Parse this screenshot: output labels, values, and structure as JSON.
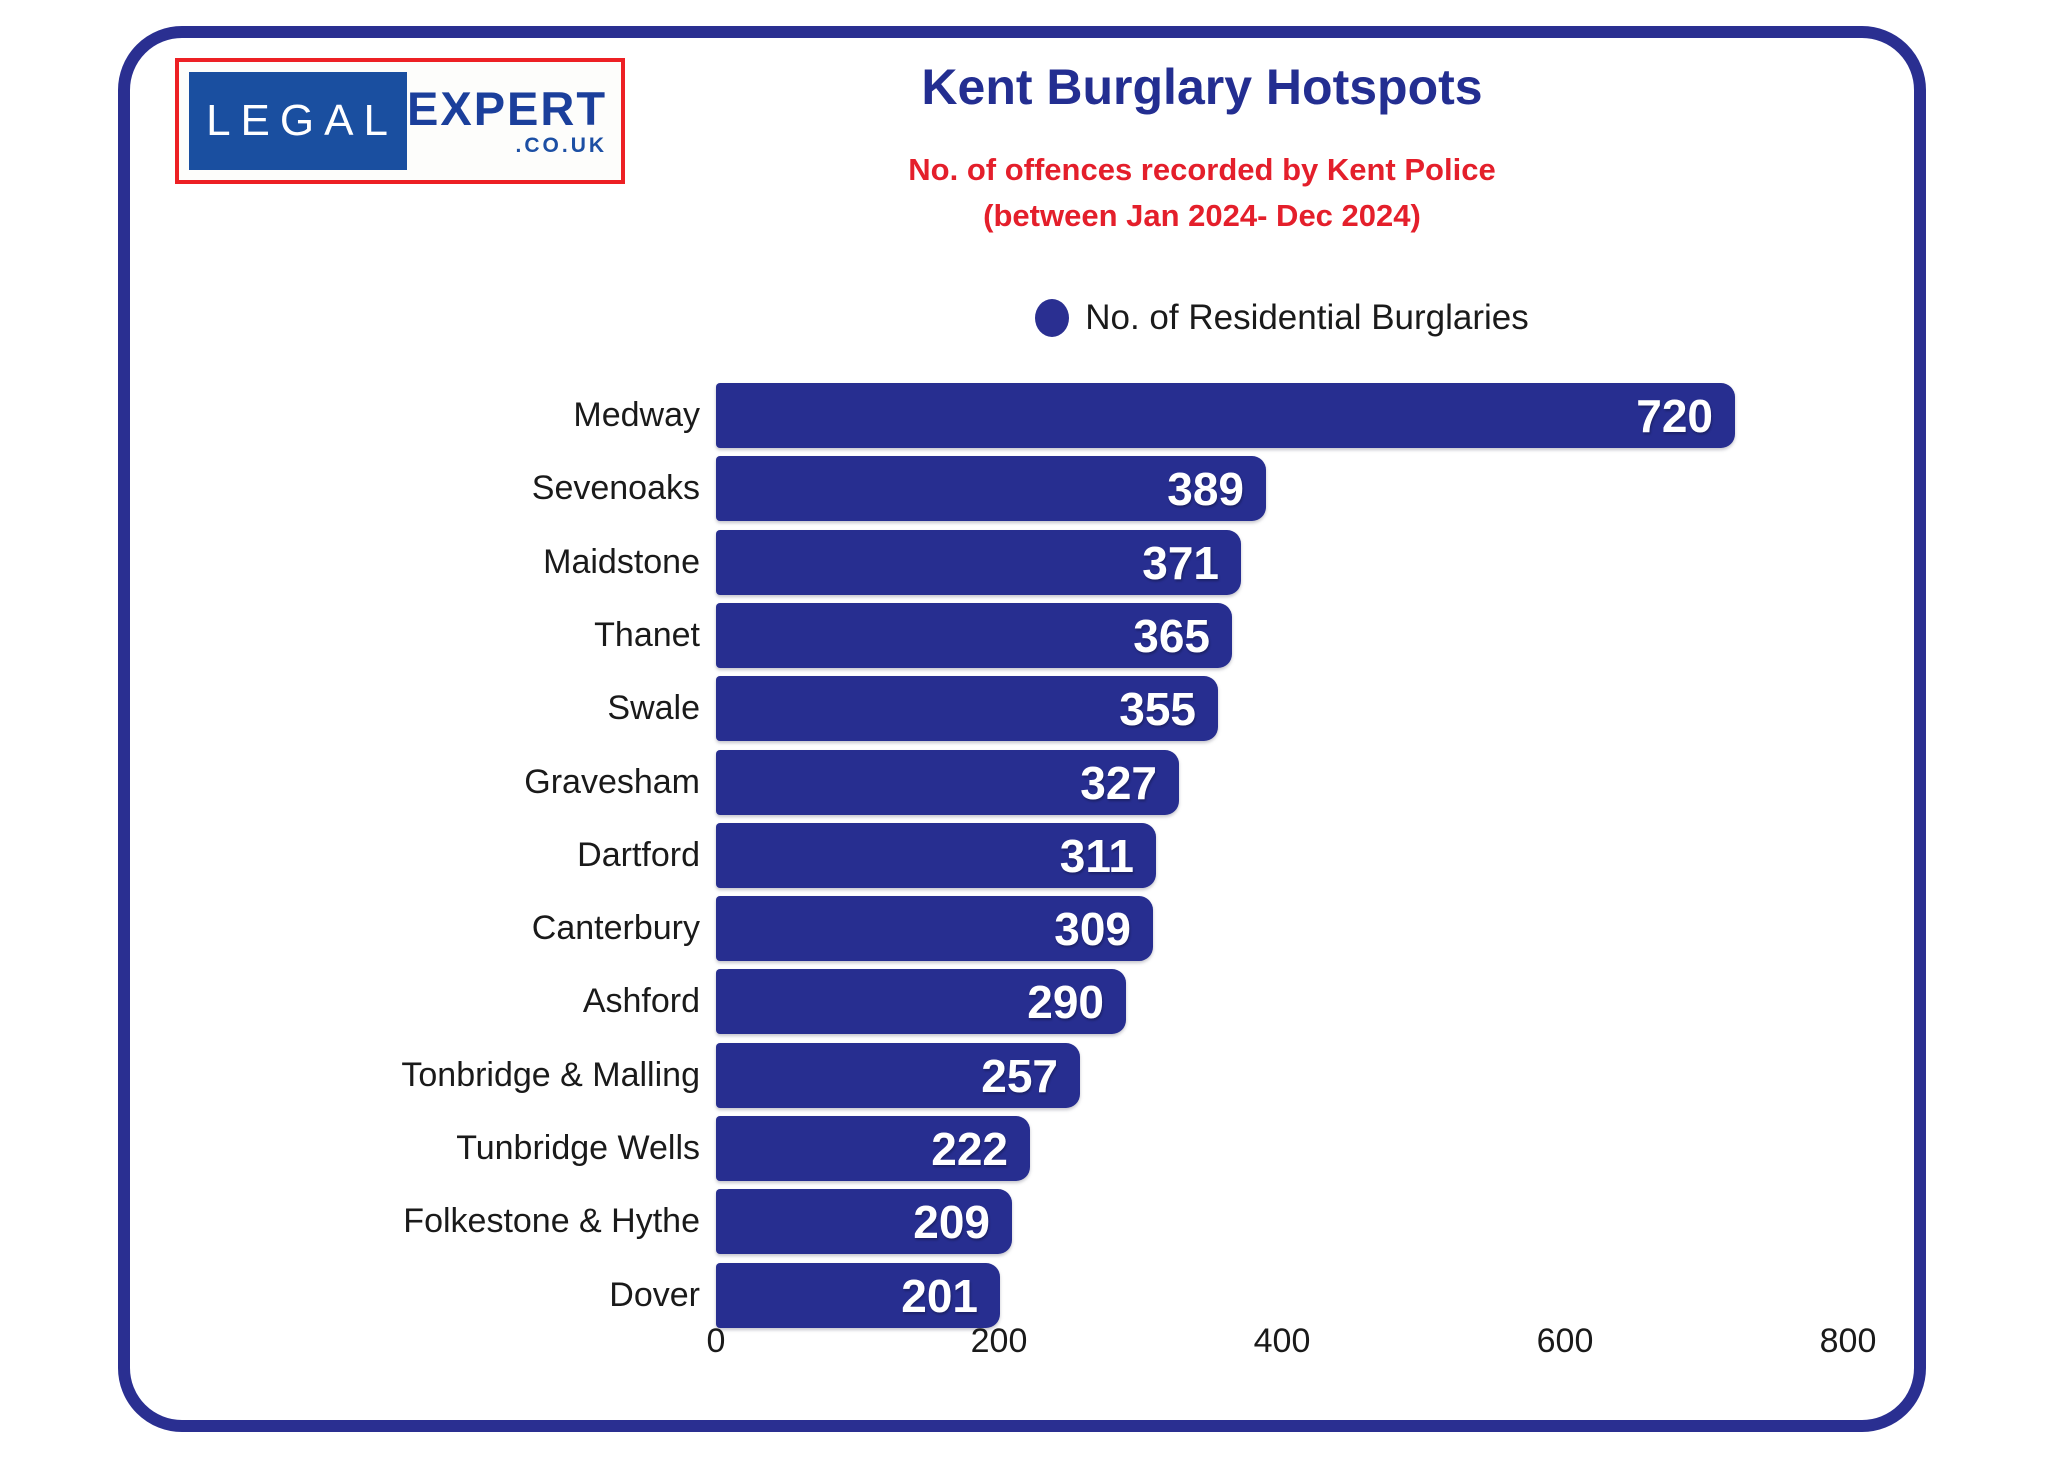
{
  "logo": {
    "word1": "LEGAL",
    "word2": "EXPERT",
    "suffix": ".CO.UK",
    "blue_box_color": "#1a4fa0",
    "word2_color": "#1b3f9b",
    "border_color": "#ed2024"
  },
  "header": {
    "title": "Kent Burglary Hotspots",
    "subtitle_line1": "No. of offences recorded by Kent Police",
    "subtitle_line2": "(between Jan 2024- Dec 2024)",
    "title_color": "#232e91",
    "subtitle_color": "#e41f2b"
  },
  "legend": {
    "label": "No. of Residential Burglaries",
    "marker_color": "#2a2f91"
  },
  "chart_data": {
    "type": "bar",
    "orientation": "horizontal",
    "title": "Kent Burglary Hotspots",
    "series_name": "No. of Residential Burglaries",
    "categories": [
      "Medway",
      "Sevenoaks",
      "Maidstone",
      "Thanet",
      "Swale",
      "Gravesham",
      "Dartford",
      "Canterbury",
      "Ashford",
      "Tonbridge & Malling",
      "Tunbridge Wells",
      "Folkestone & Hythe",
      "Dover"
    ],
    "values": [
      720,
      389,
      371,
      365,
      355,
      327,
      311,
      309,
      290,
      257,
      222,
      209,
      201
    ],
    "xlim": [
      0,
      800
    ],
    "x_ticks": [
      0,
      200,
      400,
      600,
      800
    ],
    "bar_color": "#272e90",
    "value_label_color": "#ffffff",
    "grid": false,
    "legend_position": "top"
  },
  "frame": {
    "border_color": "#2a2f91"
  }
}
